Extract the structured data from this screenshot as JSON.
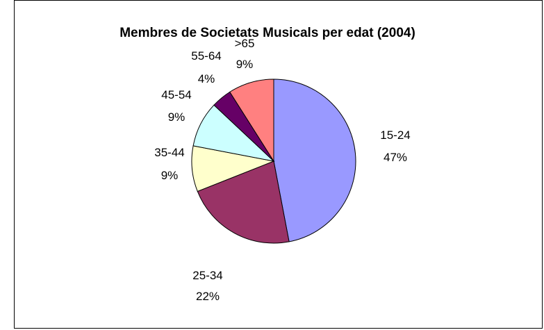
{
  "chart_data": {
    "type": "pie",
    "title": "Membres de Societats Musicals per edat (2004)",
    "categories": [
      "15-24",
      "25-34",
      "35-44",
      "45-54",
      "55-64",
      ">65"
    ],
    "values": [
      47,
      22,
      9,
      9,
      4,
      9
    ],
    "labels": [
      "47%",
      "22%",
      "9%",
      "9%",
      "4%",
      "9%"
    ],
    "colors": [
      "#9999FF",
      "#993366",
      "#FFFFCC",
      "#CCFFFF",
      "#660066",
      "#FF8080"
    ],
    "start_angle": "12 o'clock",
    "direction": "clockwise",
    "legend": "none"
  }
}
